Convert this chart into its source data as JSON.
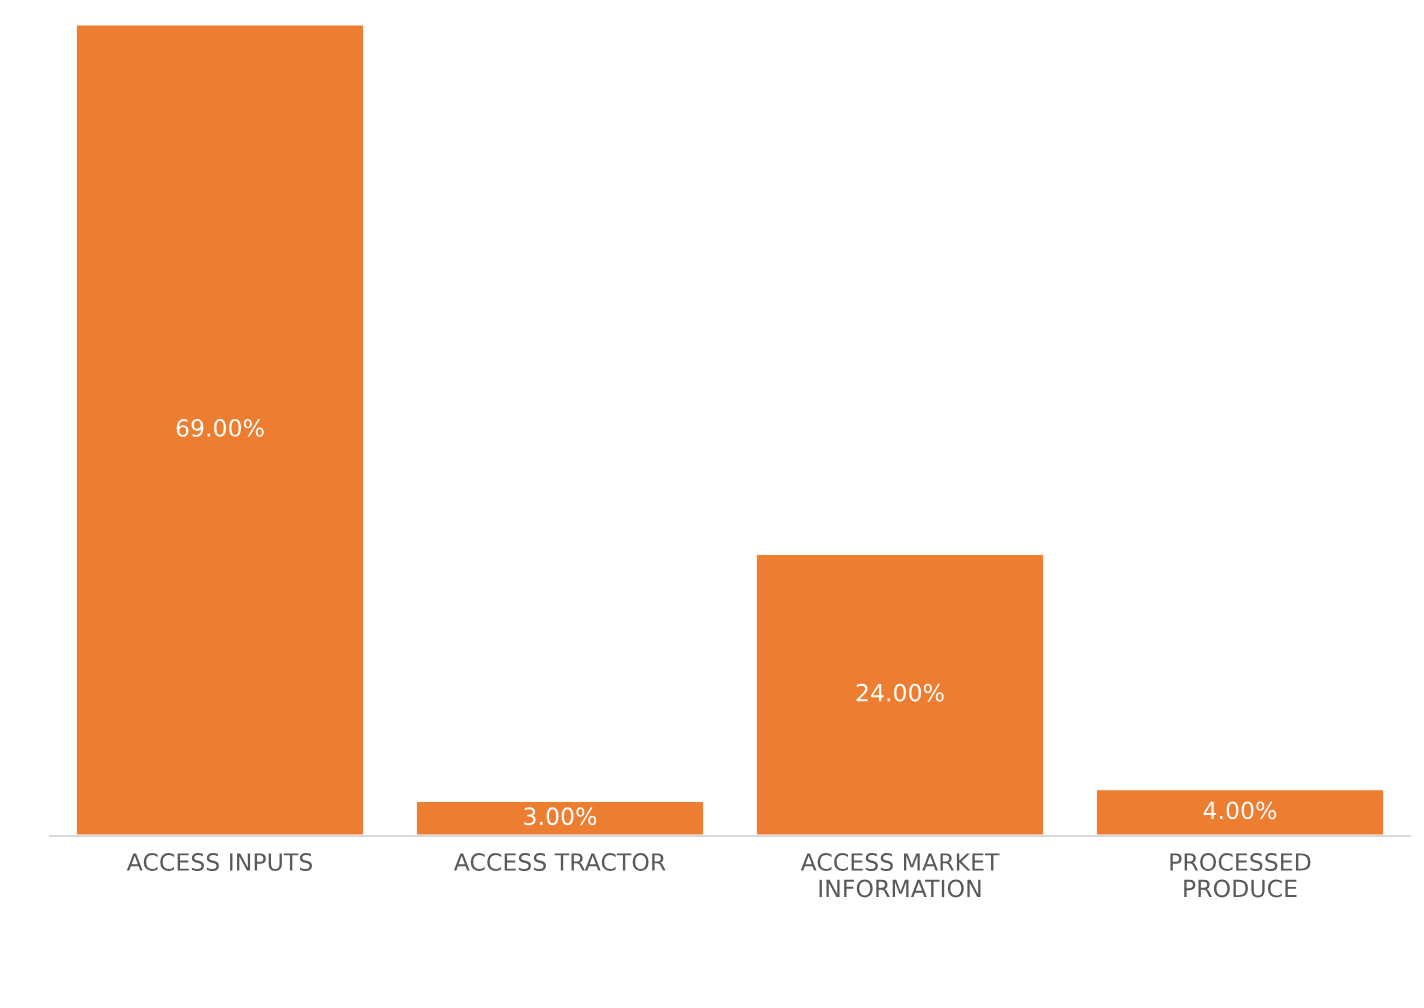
{
  "chart_data": {
    "type": "bar",
    "categories": [
      "ACCESS INPUTS",
      "ACCESS TRACTOR",
      "ACCESS MARKET INFORMATION",
      "PROCESSED PRODUCE"
    ],
    "values": [
      69,
      3,
      24,
      4
    ],
    "value_labels": [
      "69.00%",
      "3.00%",
      "24.00%",
      "4.00%"
    ],
    "color": "#ed7d31",
    "grid": false,
    "legend": false
  }
}
